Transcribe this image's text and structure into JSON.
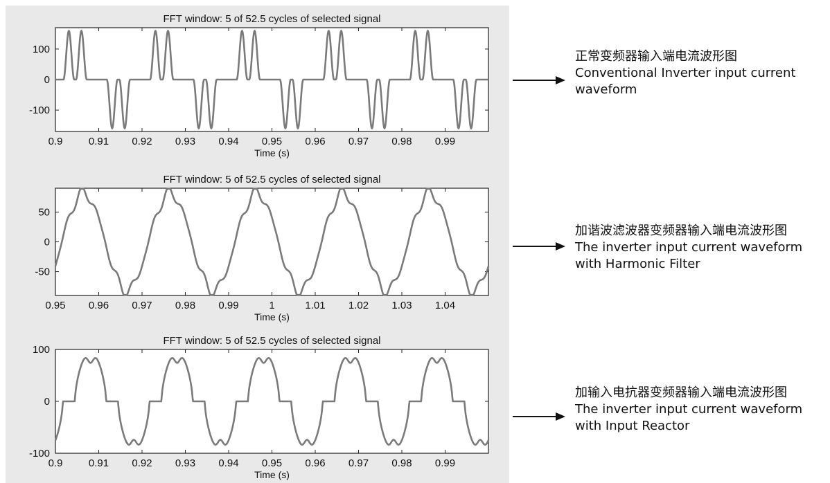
{
  "colors": {
    "panel": "#e9e9e9",
    "signal": "#7a7a7a",
    "axis": "#222222",
    "text": "#111111"
  },
  "chart_data": [
    {
      "type": "line",
      "title": "FFT window: 5 of 52.5 cycles of selected signal",
      "xlabel": "Time (s)",
      "ylabel": "",
      "xlim": [
        0.9,
        1.0
      ],
      "ylim": [
        -170,
        170
      ],
      "xticks": [
        "0.9",
        "0.91",
        "0.92",
        "0.93",
        "0.94",
        "0.95",
        "0.96",
        "0.97",
        "0.98",
        "0.99"
      ],
      "yticks": [
        "100",
        "0",
        "-100"
      ],
      "ytick_values": [
        100,
        0,
        -100
      ],
      "signal": {
        "fundamental_hz": 50,
        "waveform": "six-pulse rectifier current (double-hump pulses)",
        "peak": 160
      },
      "grid": false
    },
    {
      "type": "line",
      "title": "FFT window: 5 of 52.5 cycles of selected signal",
      "xlabel": "Time (s)",
      "ylabel": "",
      "xlim": [
        0.95,
        1.05
      ],
      "ylim": [
        -90,
        90
      ],
      "xticks": [
        "0.95",
        "0.96",
        "0.97",
        "0.98",
        "0.99",
        "1",
        "1.01",
        "1.02",
        "1.03",
        "1.04"
      ],
      "yticks": [
        "50",
        "0",
        "-50"
      ],
      "ytick_values": [
        50,
        0,
        -50
      ],
      "signal": {
        "fundamental_hz": 50,
        "waveform": "near-sinusoidal with slight distortion",
        "peak": 85
      },
      "grid": false
    },
    {
      "type": "line",
      "title": "FFT window: 5 of 52.5 cycles of selected signal",
      "xlabel": "Time (s)",
      "ylabel": "",
      "xlim": [
        0.9,
        1.0
      ],
      "ylim": [
        -100,
        100
      ],
      "xticks": [
        "0.9",
        "0.91",
        "0.92",
        "0.93",
        "0.94",
        "0.95",
        "0.96",
        "0.97",
        "0.98",
        "0.99"
      ],
      "yticks": [
        "100",
        "0",
        "-100"
      ],
      "ytick_values": [
        100,
        0,
        -100
      ],
      "signal": {
        "fundamental_hz": 50,
        "waveform": "rectifier current with double-hump broad pulses",
        "peak": 95
      },
      "grid": false
    }
  ],
  "annotations": [
    {
      "zh": "正常变频器输入端电流波形图",
      "en1": "Conventional Inverter input current",
      "en2": "waveform"
    },
    {
      "zh": "加谐波滤波器变频器输入端电流波形图",
      "en1": "The inverter input current waveform",
      "en2": "with Harmonic Filter"
    },
    {
      "zh": "加输入电抗器变频器输入端电流波形图",
      "en1": "The inverter input current waveform",
      "en2": "with Input Reactor"
    }
  ]
}
